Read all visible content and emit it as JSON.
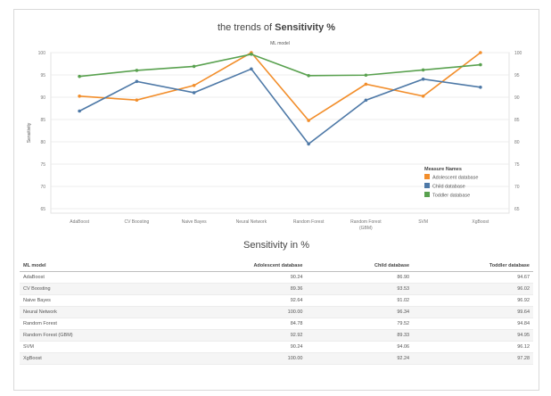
{
  "page": {
    "title_prefix": "the trends of ",
    "title_bold": "Sensitivity %",
    "table_title": "Sensitivity in %"
  },
  "chart_data": {
    "type": "line",
    "title": "the trends of Sensitivity %",
    "xlabel": "ML model",
    "ylabel": "Sensitivity",
    "ylim": [
      64,
      100
    ],
    "yticks": [
      65,
      70,
      75,
      80,
      85,
      90,
      95,
      100
    ],
    "grid": true,
    "legend_title": "Measure Names",
    "legend_position": "bottom-right",
    "categories": [
      "AdaBoost",
      "CV Boosting",
      "Naive Bayes",
      "Neural Network",
      "Random Forest",
      "Random Forest (GBM)",
      "SVM",
      "XgBoost"
    ],
    "category_lines": [
      [
        "AdaBoost"
      ],
      [
        "CV Boosting"
      ],
      [
        "Naive Bayes"
      ],
      [
        "Neural Network"
      ],
      [
        "Random Forest"
      ],
      [
        "Random Forest",
        "(GBM)"
      ],
      [
        "SVM"
      ],
      [
        "XgBoost"
      ]
    ],
    "series": [
      {
        "name": "Adolescent database",
        "color": "#f28e2b",
        "values": [
          90.24,
          89.36,
          92.64,
          100.0,
          84.78,
          92.92,
          90.24,
          100.0
        ]
      },
      {
        "name": "Child database",
        "color": "#4e79a7",
        "values": [
          86.9,
          93.53,
          91.02,
          96.34,
          79.52,
          89.33,
          94.06,
          92.24
        ]
      },
      {
        "name": "Toddler database",
        "color": "#59a14f",
        "values": [
          94.67,
          96.02,
          96.92,
          99.64,
          94.84,
          94.95,
          96.12,
          97.28
        ]
      }
    ]
  },
  "table": {
    "headers": [
      "ML model",
      "Adolescent database",
      "Child database",
      "Toddler database"
    ],
    "rows": [
      [
        "AdaBoost",
        "90.24",
        "86.90",
        "94.67"
      ],
      [
        "CV Boosting",
        "89.36",
        "93.53",
        "96.02"
      ],
      [
        "Naive Bayes",
        "92.64",
        "91.02",
        "96.92"
      ],
      [
        "Neural Network",
        "100.00",
        "96.34",
        "99.64"
      ],
      [
        "Random Forest",
        "84.78",
        "79.52",
        "94.84"
      ],
      [
        "Random Forest (GBM)",
        "92.92",
        "89.33",
        "94.95"
      ],
      [
        "SVM",
        "90.24",
        "94.06",
        "96.12"
      ],
      [
        "XgBoost",
        "100.00",
        "92.24",
        "97.28"
      ]
    ]
  }
}
